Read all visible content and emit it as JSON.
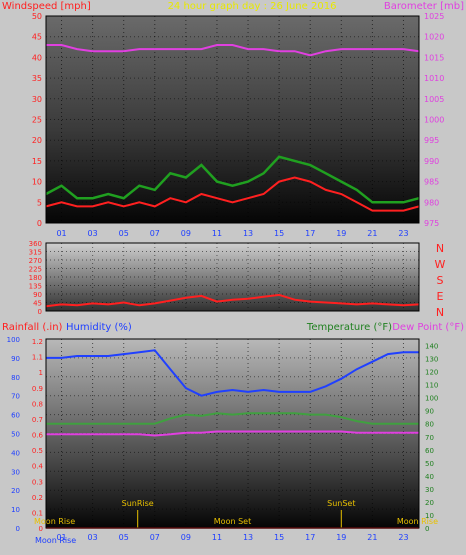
{
  "chart_data": [
    {
      "type": "line",
      "title": "24 hour graph day : 26 June 2016",
      "ylabel_left": "Windspeed [mph]",
      "ylabel_right": "Barometer [mb]",
      "x_ticks": [
        "01",
        "03",
        "05",
        "07",
        "09",
        "11",
        "13",
        "15",
        "17",
        "19",
        "21",
        "23"
      ],
      "ylim_left": [
        0,
        50
      ],
      "yticks_left": [
        0,
        5,
        10,
        15,
        20,
        25,
        30,
        35,
        40,
        45,
        50
      ],
      "ylim_right": [
        975,
        1025
      ],
      "yticks_right": [
        975,
        980,
        985,
        990,
        995,
        1000,
        1005,
        1010,
        1015,
        1020,
        1025
      ],
      "series": [
        {
          "name": "Windspeed",
          "color": "#ff2020",
          "x": [
            0,
            1,
            2,
            3,
            4,
            5,
            6,
            7,
            8,
            9,
            10,
            11,
            12,
            13,
            14,
            15,
            16,
            17,
            18,
            19,
            20,
            21,
            22,
            23,
            24
          ],
          "y": [
            4,
            5,
            4,
            4,
            5,
            4,
            5,
            4,
            6,
            5,
            7,
            6,
            5,
            6,
            7,
            10,
            11,
            10,
            8,
            7,
            5,
            3,
            3,
            3,
            4
          ]
        },
        {
          "name": "Gust",
          "color": "#20a020",
          "x": [
            0,
            1,
            2,
            3,
            4,
            5,
            6,
            7,
            8,
            9,
            10,
            11,
            12,
            13,
            14,
            15,
            16,
            17,
            18,
            19,
            20,
            21,
            22,
            23,
            24
          ],
          "y": [
            7,
            9,
            6,
            6,
            7,
            6,
            9,
            8,
            12,
            11,
            14,
            10,
            9,
            10,
            12,
            16,
            15,
            14,
            12,
            10,
            8,
            5,
            5,
            5,
            6
          ]
        },
        {
          "name": "Barometer",
          "color": "#e040e0",
          "x": [
            0,
            1,
            2,
            3,
            4,
            5,
            6,
            7,
            8,
            9,
            10,
            11,
            12,
            13,
            14,
            15,
            16,
            17,
            18,
            19,
            20,
            21,
            22,
            23,
            24
          ],
          "y": [
            1018,
            1018,
            1017,
            1016.5,
            1016.5,
            1016.5,
            1017,
            1017,
            1017,
            1017,
            1017,
            1018,
            1018,
            1017,
            1017,
            1016.5,
            1016.5,
            1015.5,
            1016.5,
            1017,
            1017,
            1017,
            1017,
            1017,
            1016.5
          ]
        }
      ]
    },
    {
      "type": "line",
      "ylabel_right_letters": [
        "N",
        "W",
        "S",
        "E",
        "N"
      ],
      "ylim": [
        0,
        360
      ],
      "yticks": [
        0,
        45,
        90,
        135,
        180,
        225,
        270,
        315,
        360
      ],
      "series": [
        {
          "name": "Wind Direction",
          "color": "#ff2020",
          "x": [
            0,
            1,
            2,
            3,
            4,
            5,
            6,
            7,
            8,
            9,
            10,
            11,
            12,
            13,
            14,
            15,
            16,
            17,
            18,
            19,
            20,
            21,
            22,
            23,
            24
          ],
          "y": [
            25,
            35,
            30,
            40,
            35,
            45,
            30,
            40,
            55,
            70,
            80,
            50,
            60,
            65,
            75,
            85,
            60,
            50,
            45,
            40,
            35,
            40,
            35,
            30,
            35
          ]
        }
      ]
    },
    {
      "type": "line",
      "ylabel_left_1": "Rainfall (.in)",
      "ylabel_left_2": "Humidity (%)",
      "ylabel_right_1": "Temperature (°F)",
      "ylabel_right_2": "Dew Point (°F)",
      "yticks_rain": [
        "0",
        "0.1",
        "0.2",
        "0.3",
        "0.4",
        "0.5",
        "0.6",
        "0.7",
        "0.8",
        "0.9",
        "1",
        "1.1",
        "1.2"
      ],
      "yticks_humidity": [
        0,
        10,
        20,
        30,
        40,
        50,
        60,
        70,
        80,
        90,
        100
      ],
      "yticks_temp": [
        0,
        10,
        20,
        30,
        40,
        50,
        60,
        70,
        80,
        90,
        100,
        110,
        120,
        130,
        140
      ],
      "ylim_humidity": [
        0,
        100
      ],
      "ylim_temp": [
        0,
        145
      ],
      "x_ticks": [
        "01",
        "03",
        "05",
        "07",
        "09",
        "11",
        "13",
        "15",
        "17",
        "19",
        "21",
        "23"
      ],
      "annotations": [
        {
          "text": "SunRise",
          "x": 5.9
        },
        {
          "text": "SunSet",
          "x": 19.0
        },
        {
          "text": "Moon Rise",
          "x": 0.0
        },
        {
          "text": "Moon Set",
          "x": 12.0
        },
        {
          "text": "Moon Rise",
          "x": 23.7
        }
      ],
      "bottom_label": "Moon Rise",
      "series": [
        {
          "name": "Humidity",
          "color": "#2040ff",
          "x": [
            0,
            1,
            2,
            3,
            4,
            5,
            6,
            7,
            8,
            9,
            10,
            11,
            12,
            13,
            14,
            15,
            16,
            17,
            18,
            19,
            20,
            21,
            22,
            23,
            24
          ],
          "y": [
            90,
            90,
            91,
            91,
            91,
            92,
            93,
            94,
            84,
            74,
            70,
            72,
            73,
            72,
            73,
            72,
            72,
            72,
            75,
            79,
            84,
            88,
            92,
            93,
            93
          ]
        },
        {
          "name": "Temperature",
          "color": "#40a040",
          "x": [
            0,
            1,
            2,
            3,
            4,
            5,
            6,
            7,
            8,
            9,
            10,
            11,
            12,
            13,
            14,
            15,
            16,
            17,
            18,
            19,
            20,
            21,
            22,
            23,
            24
          ],
          "y": [
            80,
            80,
            80,
            80,
            80,
            80,
            80,
            80,
            84,
            87,
            86,
            88,
            87,
            88,
            88,
            88,
            88,
            87,
            87,
            85,
            82,
            80,
            80,
            80,
            80
          ]
        },
        {
          "name": "Dew Point",
          "color": "#e040e0",
          "x": [
            0,
            1,
            2,
            3,
            4,
            5,
            6,
            7,
            8,
            9,
            10,
            11,
            12,
            13,
            14,
            15,
            16,
            17,
            18,
            19,
            20,
            21,
            22,
            23,
            24
          ],
          "y": [
            72,
            72,
            72,
            72,
            72,
            72,
            72,
            71,
            72,
            73,
            73,
            74,
            74,
            74,
            74,
            74,
            74,
            74,
            74,
            74,
            73,
            73,
            73,
            73,
            73
          ]
        },
        {
          "name": "Rainfall",
          "color": "#ff2020",
          "x": [
            0,
            24
          ],
          "y": [
            0,
            0
          ]
        }
      ]
    }
  ]
}
